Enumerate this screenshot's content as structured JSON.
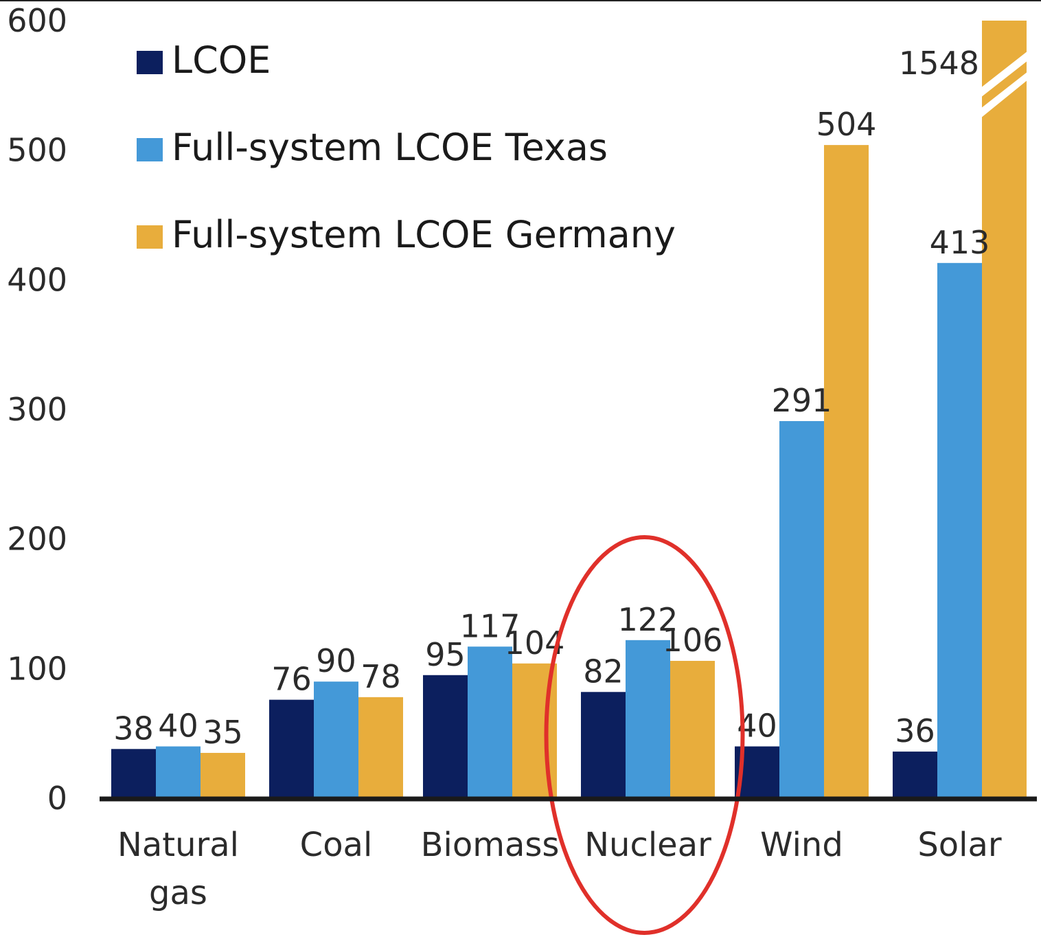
{
  "chart_data": {
    "type": "bar",
    "title": "",
    "xlabel": "",
    "ylabel": "",
    "ylim": [
      0,
      600
    ],
    "yticks": [
      0,
      100,
      200,
      300,
      400,
      500,
      600
    ],
    "categories": [
      [
        "Natural",
        "gas"
      ],
      [
        "Coal"
      ],
      [
        "Biomass"
      ],
      [
        "Nuclear"
      ],
      [
        "Wind"
      ],
      [
        "Solar"
      ]
    ],
    "series": [
      {
        "name": "LCOE",
        "color": "#0c1f5e",
        "values": [
          38,
          76,
          95,
          82,
          40,
          36
        ],
        "labels": [
          "38",
          "76",
          "95",
          "82",
          "40",
          "36"
        ]
      },
      {
        "name": "Full-system LCOE Texas",
        "color": "#4499d8",
        "values": [
          40,
          90,
          117,
          122,
          291,
          413
        ],
        "labels": [
          "40",
          "90",
          "117",
          "122",
          "291",
          "413"
        ]
      },
      {
        "name": "Full-system LCOE Germany",
        "color": "#e8ad3c",
        "values": [
          35,
          78,
          104,
          106,
          504,
          1548
        ],
        "labels": [
          "35",
          "78",
          "104",
          "106",
          "504",
          "1548"
        ]
      }
    ],
    "axis_break": {
      "category": "Solar",
      "series": "Full-system LCOE Germany"
    },
    "highlight": {
      "category": "Nuclear",
      "shape": "ellipse",
      "color": "#e0302a"
    },
    "legend_position": "top-left"
  }
}
